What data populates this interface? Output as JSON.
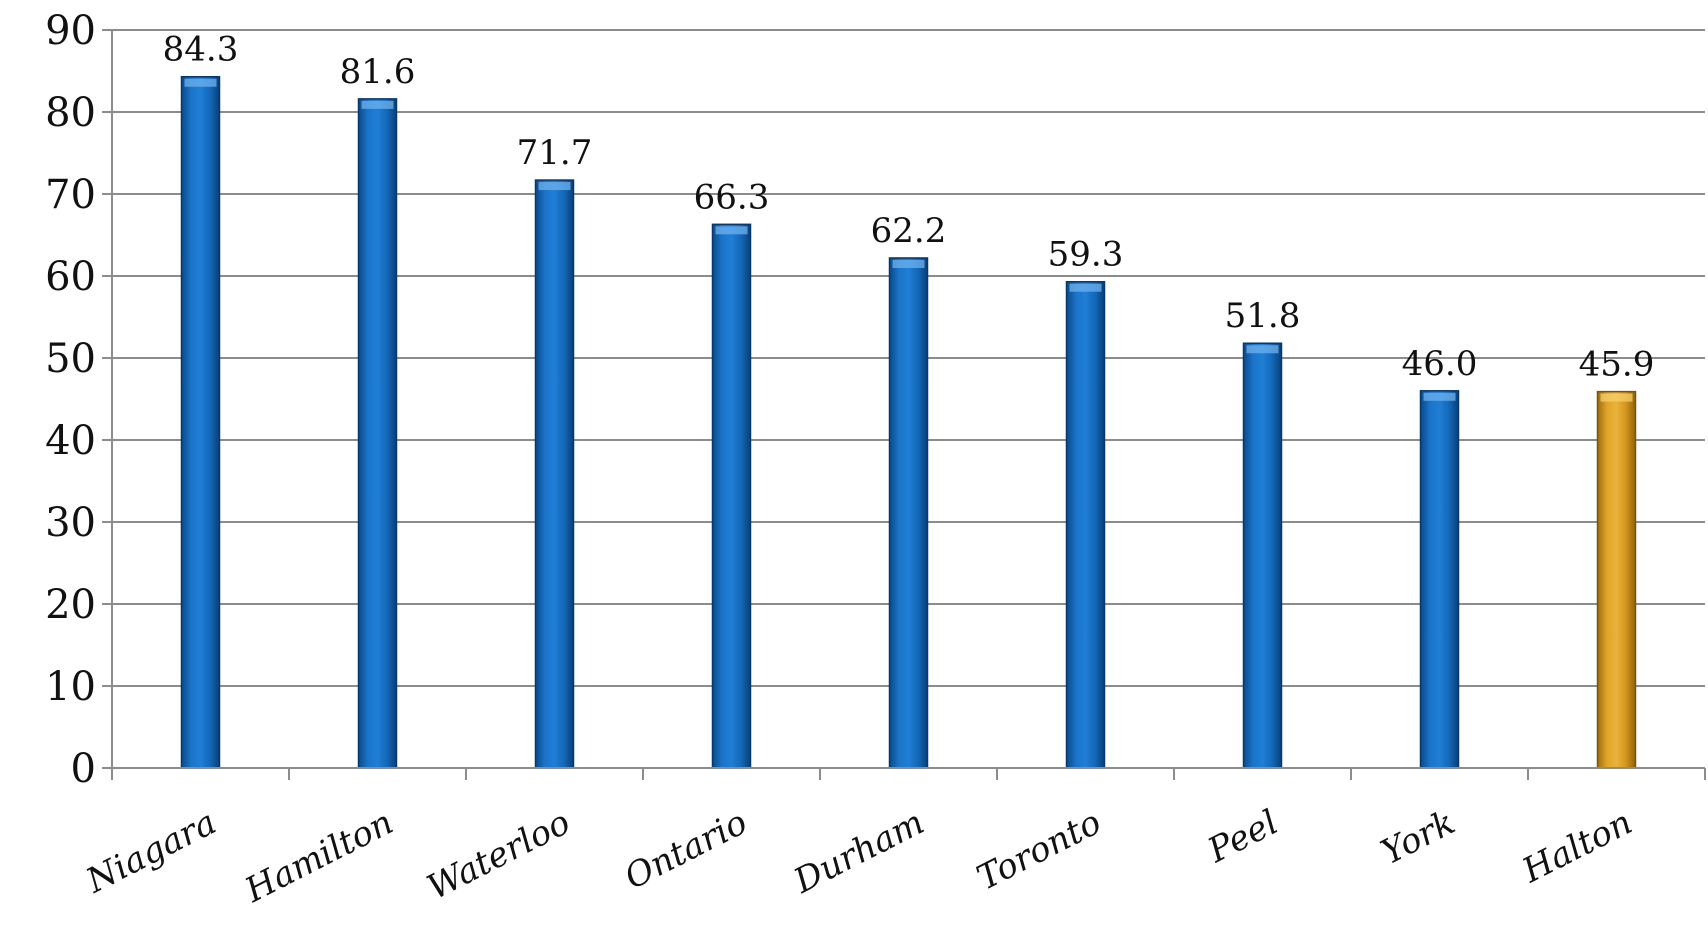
{
  "chart_data": {
    "type": "bar",
    "title": "",
    "xlabel": "",
    "ylabel": "",
    "categories": [
      "Niagara",
      "Hamilton",
      "Waterloo",
      "Ontario",
      "Durham",
      "Toronto",
      "Peel",
      "York",
      "Halton"
    ],
    "values": [
      84.3,
      81.6,
      71.7,
      66.3,
      62.2,
      59.3,
      51.8,
      46.0,
      45.9
    ],
    "value_labels": [
      "84.3",
      "81.6",
      "71.7",
      "66.3",
      "62.2",
      "59.3",
      "51.8",
      "46.0",
      "45.9"
    ],
    "ylim": [
      0,
      90
    ],
    "yticks": [
      0,
      10,
      20,
      30,
      40,
      50,
      60,
      70,
      80,
      90
    ],
    "grid": true,
    "legend": "none",
    "colors": {
      "default_bar": "#0f64b4",
      "highlight_bar": "#d99a1c",
      "highlight_category": "Halton"
    }
  }
}
